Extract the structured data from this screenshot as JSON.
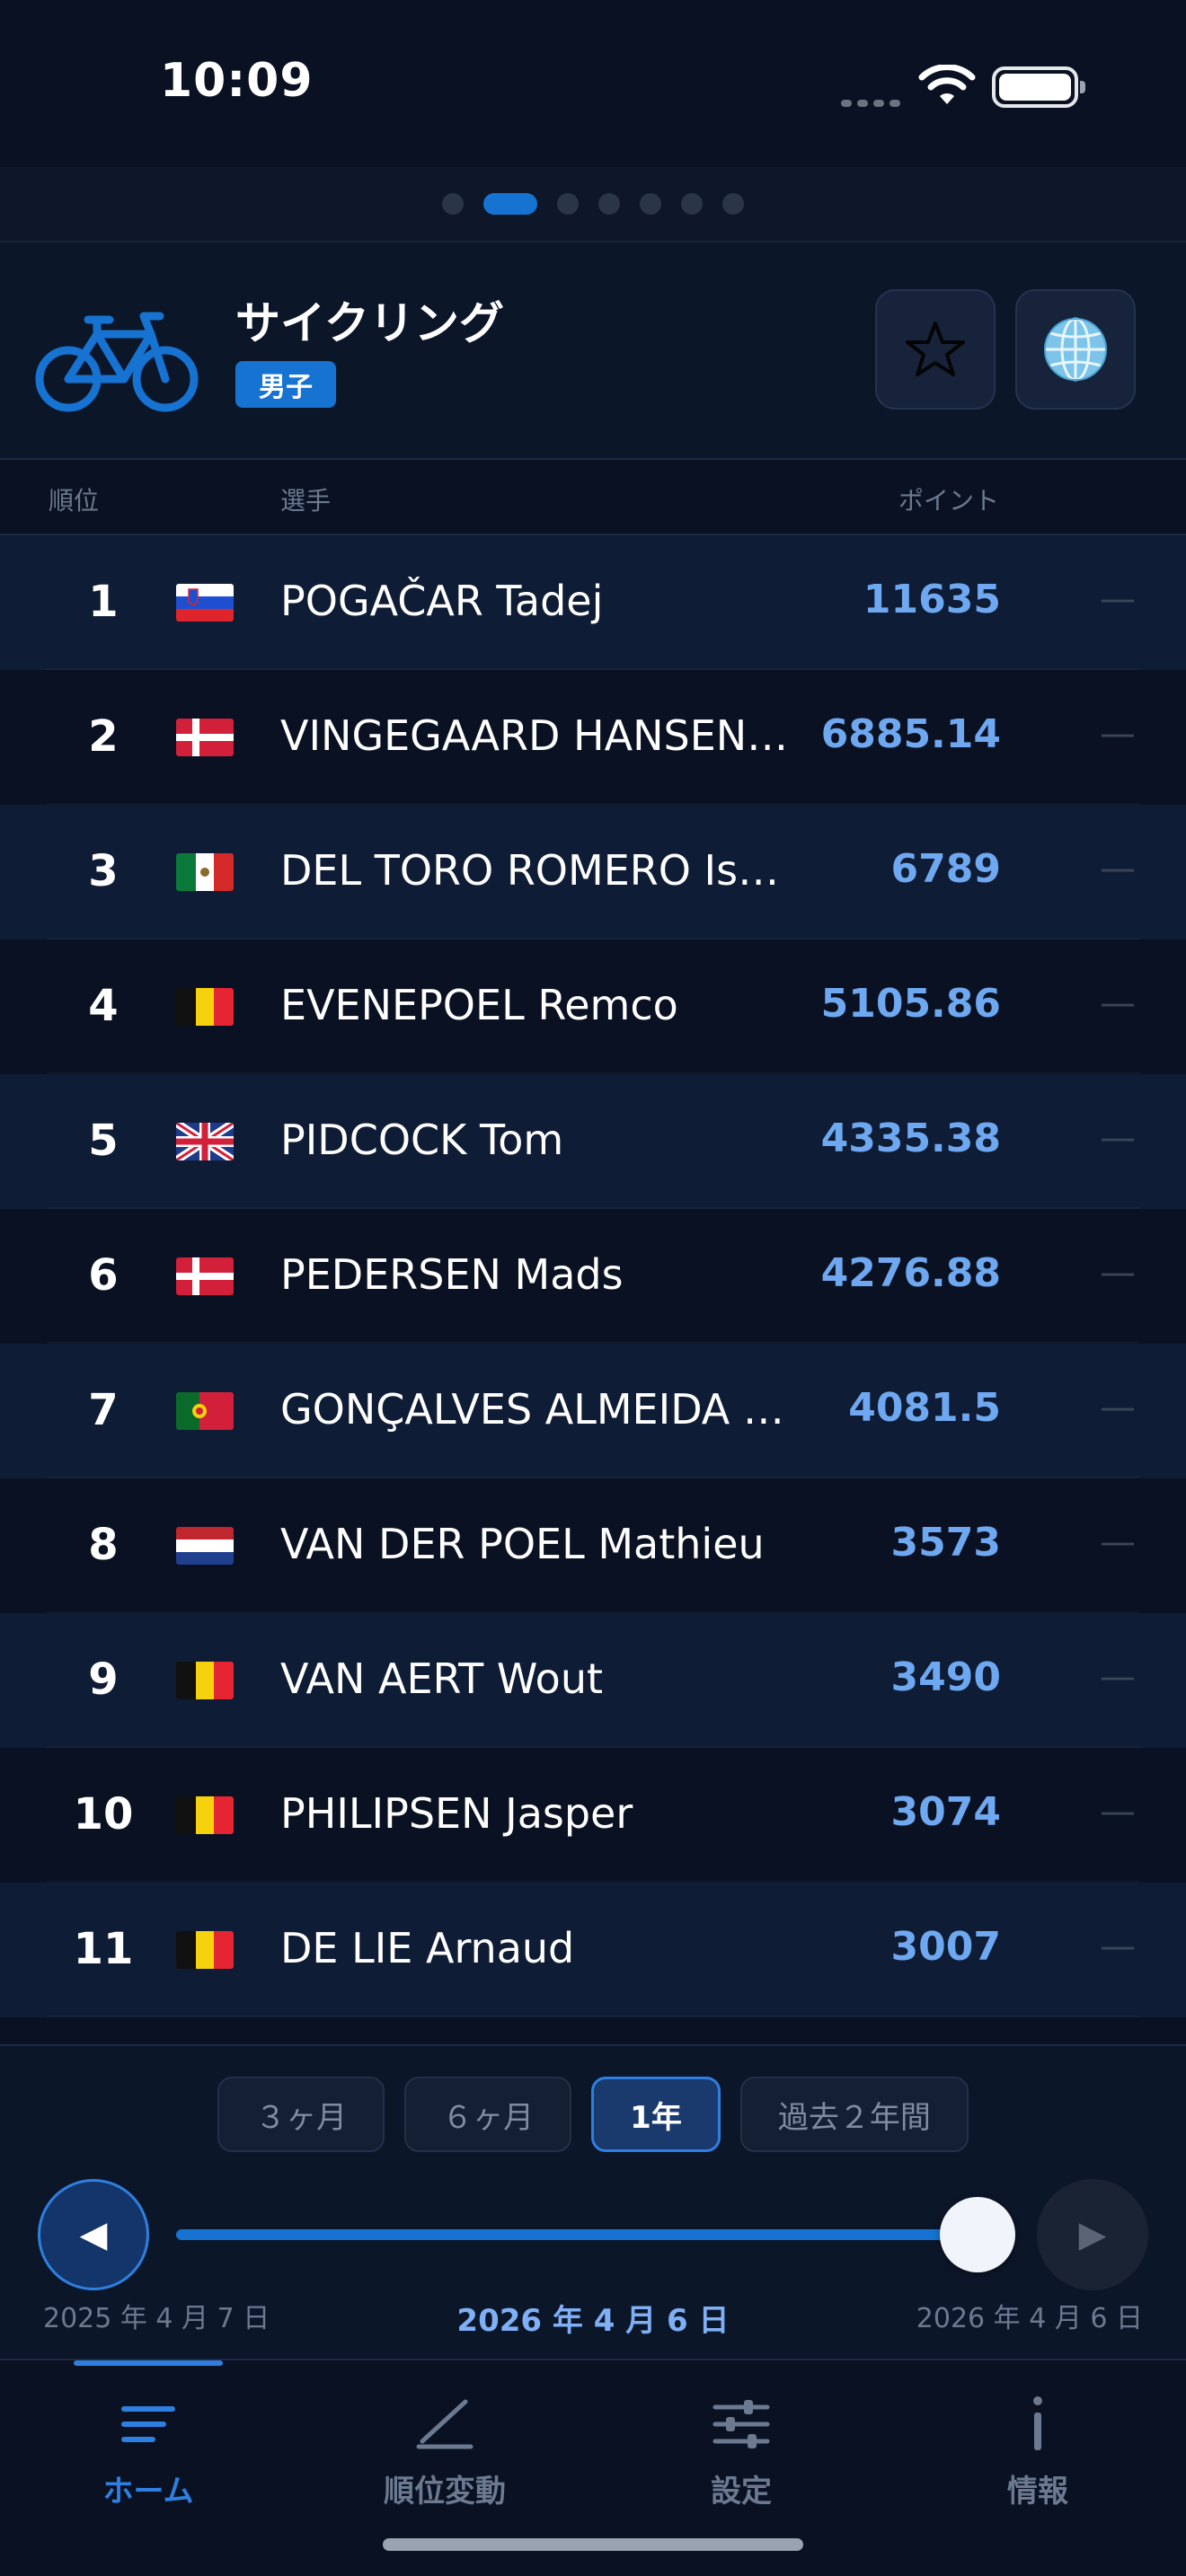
{
  "status_bar": {
    "time": "10:09"
  },
  "header": {
    "sport": "サイクリング",
    "gender": "男子",
    "icons": {
      "sport": "bicycle-icon",
      "favorite": "star-icon",
      "region": "globe-icon"
    }
  },
  "pager": {
    "count": 7,
    "active_index": 1
  },
  "table": {
    "col_rank": "順位",
    "col_athlete": "選手",
    "col_points": "ポイント",
    "rows": [
      {
        "rank": "1",
        "flag": "slovenia",
        "name": "POGAČAR Tadej",
        "points": "11635",
        "change": "—"
      },
      {
        "rank": "2",
        "flag": "denmark",
        "name": "VINGEGAARD HANSEN Jonas",
        "points": "6885.14",
        "change": "—"
      },
      {
        "rank": "3",
        "flag": "mexico",
        "name": "DEL TORO ROMERO Isaac",
        "points": "6789",
        "change": "—"
      },
      {
        "rank": "4",
        "flag": "belgium",
        "name": "EVENEPOEL Remco",
        "points": "5105.86",
        "change": "—"
      },
      {
        "rank": "5",
        "flag": "uk",
        "name": "PIDCOCK Tom",
        "points": "4335.38",
        "change": "—"
      },
      {
        "rank": "6",
        "flag": "denmark",
        "name": "PEDERSEN Mads",
        "points": "4276.88",
        "change": "—"
      },
      {
        "rank": "7",
        "flag": "portugal",
        "name": "GONÇALVES ALMEIDA João",
        "points": "4081.5",
        "change": "—"
      },
      {
        "rank": "8",
        "flag": "netherlands",
        "name": "VAN DER POEL Mathieu",
        "points": "3573",
        "change": "—"
      },
      {
        "rank": "9",
        "flag": "belgium",
        "name": "VAN AERT Wout",
        "points": "3490",
        "change": "—"
      },
      {
        "rank": "10",
        "flag": "belgium",
        "name": "PHILIPSEN Jasper",
        "points": "3074",
        "change": "—"
      },
      {
        "rank": "11",
        "flag": "belgium",
        "name": "DE LIE Arnaud",
        "points": "3007",
        "change": "—"
      }
    ]
  },
  "controls": {
    "periods": [
      {
        "label": "３ヶ月",
        "active": false
      },
      {
        "label": "６ヶ月",
        "active": false
      },
      {
        "label": "1年",
        "active": true
      },
      {
        "label": "過去２年間",
        "active": false
      }
    ],
    "prev_label": "◀",
    "next_label": "▶",
    "slider_value": 1.0,
    "date_start": "2025 年 4 月 7 日",
    "date_current": "2026 年 4 月 6 日",
    "date_end": "2026 年 4 月 6 日"
  },
  "tabbar": {
    "tabs": [
      {
        "label": "ホーム",
        "icon": "home-lines-icon",
        "active": true
      },
      {
        "label": "順位変動",
        "icon": "trend-line-icon",
        "active": false
      },
      {
        "label": "設定",
        "icon": "sliders-icon",
        "active": false
      },
      {
        "label": "情報",
        "icon": "info-icon",
        "active": false
      }
    ]
  },
  "colors": {
    "background": "#0a1122",
    "accent": "#1673d1",
    "points": "#6ea8f0",
    "row_alt": "#0f1c35"
  }
}
